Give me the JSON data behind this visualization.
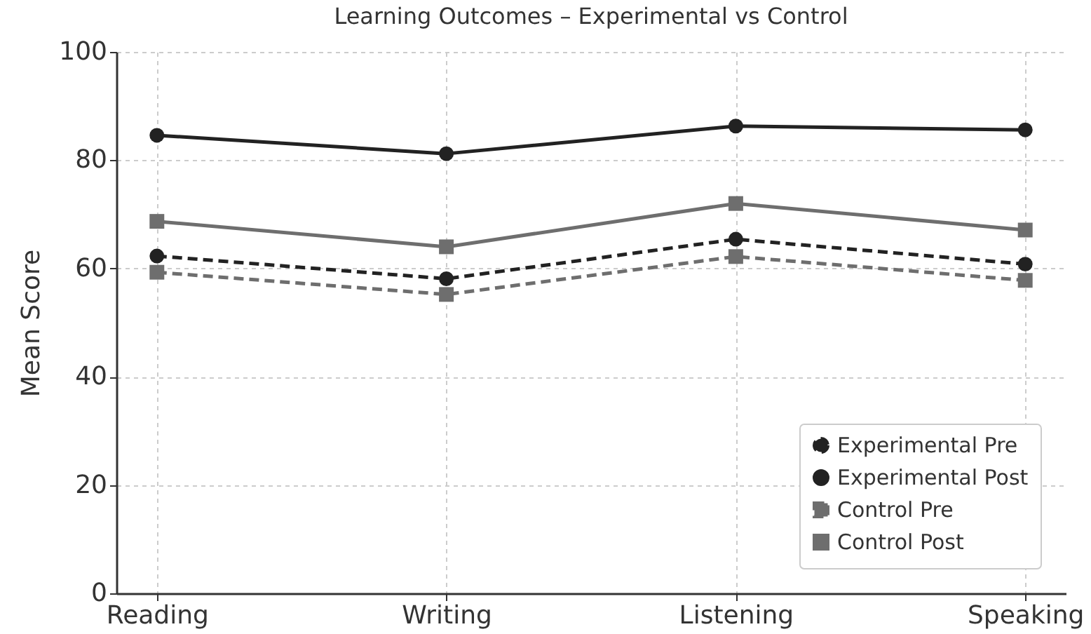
{
  "chart_data": {
    "type": "line",
    "title": "Learning Outcomes – Experimental vs Control",
    "ylabel": "Mean Score",
    "categories": [
      "Reading",
      "Writing",
      "Listening",
      "Speaking"
    ],
    "series": [
      {
        "name": "Experimental Pre",
        "color": "#222222",
        "marker": "circle",
        "line_style": "dashed",
        "values": [
          62.3,
          58.1,
          65.4,
          60.8
        ]
      },
      {
        "name": "Experimental Post",
        "color": "#222222",
        "marker": "circle",
        "line_style": "solid",
        "values": [
          84.6,
          81.2,
          86.3,
          85.6
        ]
      },
      {
        "name": "Control Pre",
        "color": "#6e6e6e",
        "marker": "square",
        "line_style": "dashed",
        "values": [
          59.3,
          55.2,
          62.2,
          57.8
        ]
      },
      {
        "name": "Control Post",
        "color": "#6e6e6e",
        "marker": "square",
        "line_style": "solid",
        "values": [
          68.7,
          64.0,
          72.0,
          67.1
        ]
      }
    ],
    "ylim": [
      0,
      100
    ],
    "yticks": [
      0,
      20,
      40,
      60,
      80,
      100
    ],
    "grid": true,
    "legend": "bottom right"
  }
}
